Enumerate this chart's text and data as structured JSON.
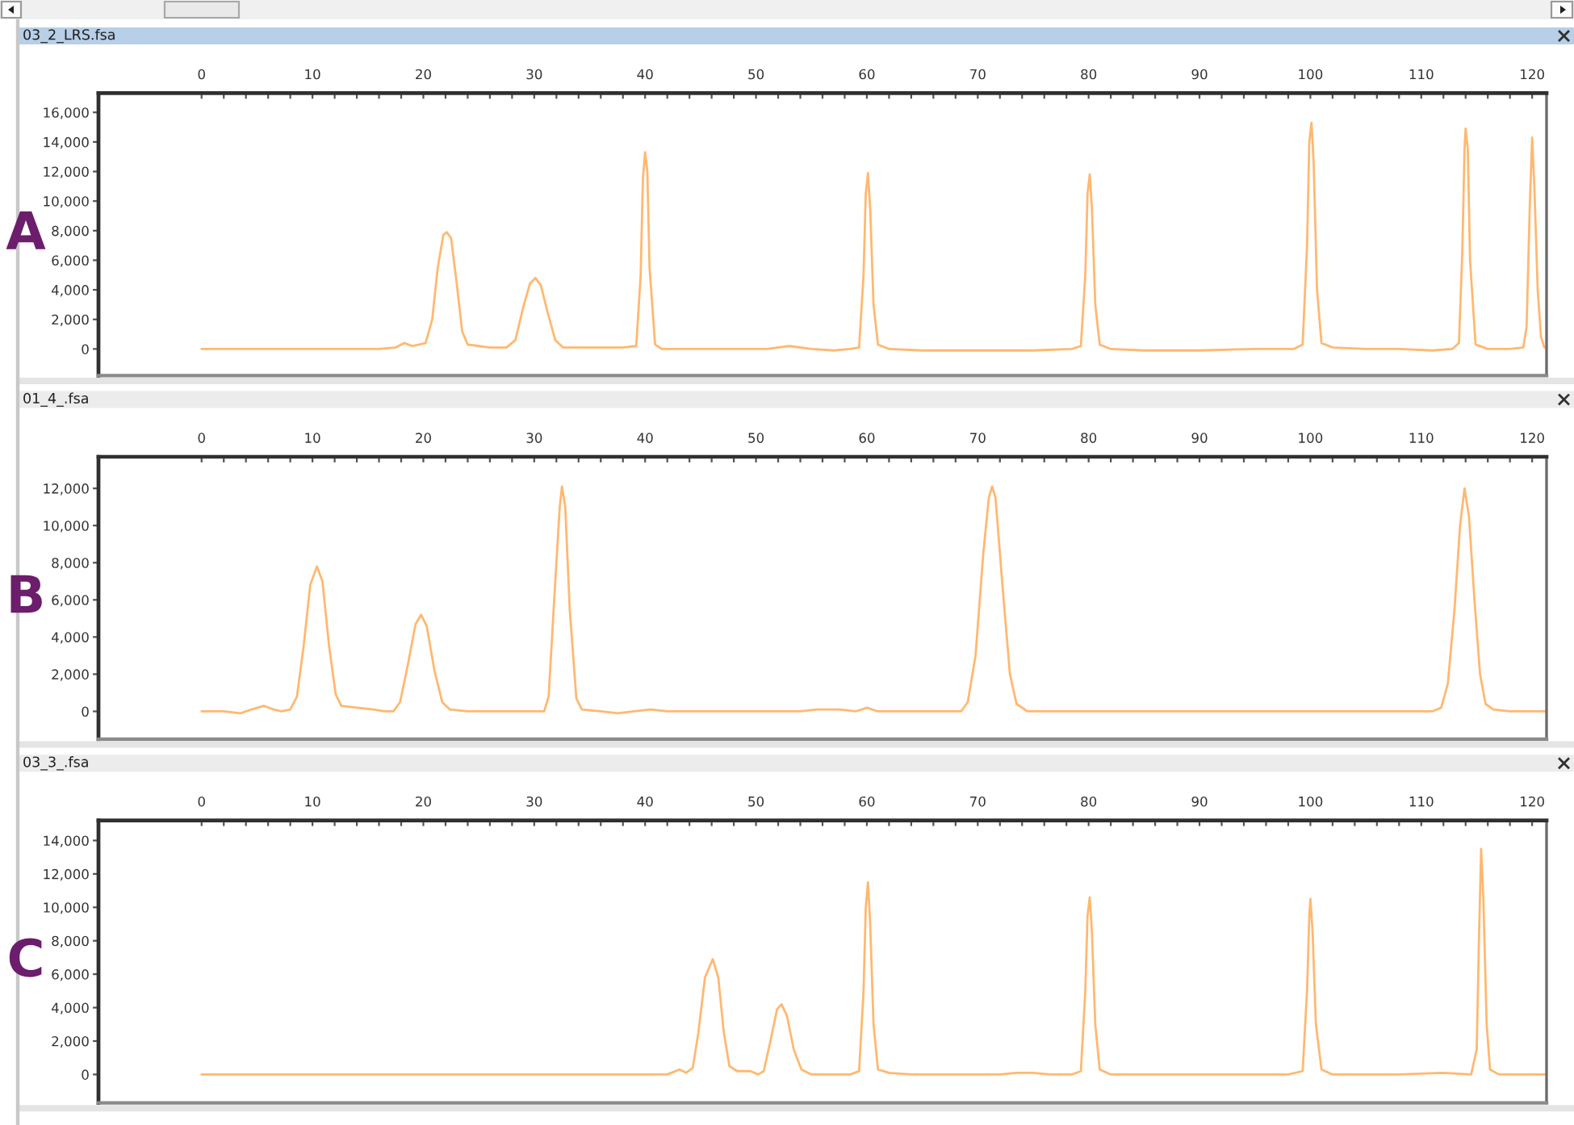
{
  "chart_data": [
    {
      "type": "line",
      "title": "03_2_LRS.fsa",
      "annotations": [
        "A"
      ],
      "x": [
        0,
        4,
        8,
        10,
        12,
        14,
        16,
        17.5,
        18.3,
        19,
        20.2,
        20.8,
        21.3,
        21.8,
        22.1,
        22.5,
        23,
        23.5,
        24,
        25,
        26,
        27.5,
        28.3,
        29,
        29.6,
        30.1,
        30.6,
        31.2,
        31.9,
        32.6,
        34,
        36,
        37,
        38,
        39.2,
        39.6,
        39.8,
        40,
        40.2,
        40.4,
        40.9,
        41.5,
        43,
        46,
        49,
        51,
        53,
        55,
        57,
        58.5,
        59.3,
        59.7,
        59.9,
        60.1,
        60.3,
        60.6,
        61,
        62,
        65,
        70,
        75,
        78.5,
        79.3,
        79.7,
        79.9,
        80.1,
        80.3,
        80.6,
        81,
        82,
        85,
        90,
        95,
        98.5,
        99.3,
        99.7,
        99.9,
        100.1,
        100.3,
        100.6,
        101,
        102,
        105,
        108,
        111,
        112.8,
        113.4,
        113.7,
        113.9,
        114,
        114.2,
        114.4,
        114.9,
        116,
        118,
        119.2,
        119.5,
        119.8,
        120,
        120.2,
        120.5,
        120.8,
        121.1
      ],
      "series": [
        {
          "color": "#ffb870",
          "values": [
            0,
            0,
            0,
            0,
            0,
            0,
            0,
            100,
            400,
            200,
            400,
            2000,
            5500,
            7700,
            7900,
            7500,
            4500,
            1200,
            300,
            200,
            100,
            100,
            600,
            2800,
            4400,
            4800,
            4300,
            2500,
            600,
            100,
            100,
            100,
            100,
            100,
            200,
            5000,
            11500,
            13300,
            12000,
            5500,
            300,
            0,
            0,
            0,
            0,
            0,
            200,
            0,
            -100,
            0,
            100,
            5000,
            10500,
            11900,
            9500,
            3000,
            300,
            0,
            -100,
            -100,
            -100,
            0,
            200,
            5000,
            10500,
            11800,
            9500,
            3000,
            300,
            0,
            -100,
            -100,
            0,
            0,
            300,
            7000,
            14000,
            15300,
            12500,
            4000,
            400,
            100,
            0,
            0,
            -100,
            0,
            400,
            6500,
            13500,
            14900,
            13500,
            6000,
            300,
            0,
            0,
            100,
            1500,
            10000,
            14300,
            11000,
            4000,
            800,
            100
          ]
        }
      ],
      "xlim": [
        -9.3,
        121.3
      ],
      "xticks": [
        0,
        {
          "value": 2,
          "label": null
        },
        {
          "value": 4,
          "label": null
        },
        {
          "value": 6,
          "label": null
        },
        {
          "value": 8,
          "label": null
        },
        10,
        {
          "value": 12,
          "label": null
        },
        {
          "value": 14,
          "label": null
        },
        {
          "value": 16,
          "label": null
        },
        {
          "value": 18,
          "label": null
        },
        20,
        {
          "value": 22,
          "label": null
        },
        {
          "value": 24,
          "label": null
        },
        {
          "value": 26,
          "label": null
        },
        {
          "value": 28,
          "label": null
        },
        30,
        {
          "value": 32,
          "label": null
        },
        {
          "value": 34,
          "label": null
        },
        {
          "value": 36,
          "label": null
        },
        {
          "value": 38,
          "label": null
        },
        40,
        {
          "value": 42,
          "label": null
        },
        {
          "value": 44,
          "label": null
        },
        {
          "value": 46,
          "label": null
        },
        {
          "value": 48,
          "label": null
        },
        50,
        {
          "value": 52,
          "label": null
        },
        {
          "value": 54,
          "label": null
        },
        {
          "value": 56,
          "label": null
        },
        {
          "value": 58,
          "label": null
        },
        60,
        {
          "value": 62,
          "label": null
        },
        {
          "value": 64,
          "label": null
        },
        {
          "value": 66,
          "label": null
        },
        {
          "value": 68,
          "label": null
        },
        70,
        {
          "value": 72,
          "label": null
        },
        {
          "value": 74,
          "label": null
        },
        {
          "value": 76,
          "label": null
        },
        {
          "value": 78,
          "label": null
        },
        80,
        {
          "value": 82,
          "label": null
        },
        {
          "value": 84,
          "label": null
        },
        {
          "value": 86,
          "label": null
        },
        {
          "value": 88,
          "label": null
        },
        90,
        {
          "value": 92,
          "label": null
        },
        {
          "value": 94,
          "label": null
        },
        {
          "value": 96,
          "label": null
        },
        {
          "value": 98,
          "label": null
        },
        100,
        {
          "value": 102,
          "label": null
        },
        {
          "value": 104,
          "label": null
        },
        {
          "value": 106,
          "label": null
        },
        {
          "value": 108,
          "label": null
        },
        110,
        {
          "value": 112,
          "label": null
        },
        {
          "value": 114,
          "label": null
        },
        {
          "value": 116,
          "label": null
        },
        {
          "value": 118,
          "label": null
        },
        120
      ],
      "ylim": [
        -1800,
        17300
      ],
      "yticks": [
        0,
        {
          "value": 2000,
          "label": "2,000"
        },
        {
          "value": 4000,
          "label": "4,000"
        },
        {
          "value": 6000,
          "label": "6,000"
        },
        {
          "value": 8000,
          "label": "8,000"
        },
        {
          "value": 10000,
          "label": "10,000"
        },
        {
          "value": 12000,
          "label": "12,000"
        },
        {
          "value": 14000,
          "label": "14,000"
        },
        {
          "value": 16000,
          "label": "16,000"
        }
      ]
    },
    {
      "type": "line",
      "title": "01_4_.fsa",
      "annotations": [
        "B"
      ],
      "x": [
        0,
        2,
        3.5,
        4.5,
        5.6,
        6.5,
        7.2,
        8,
        8.6,
        9.2,
        9.8,
        10.4,
        10.9,
        11.5,
        12.1,
        12.6,
        14,
        15.5,
        16.5,
        17.3,
        17.9,
        18.6,
        19.3,
        19.8,
        20.3,
        21,
        21.7,
        22.4,
        24,
        27,
        30,
        30.9,
        31.3,
        31.8,
        32.3,
        32.5,
        32.8,
        33.2,
        33.8,
        34.3,
        36,
        37.5,
        39,
        40.5,
        42,
        44,
        46,
        48,
        51,
        52.5,
        54,
        55.5,
        57.5,
        59,
        60,
        61,
        63,
        66,
        68.5,
        69.1,
        69.8,
        70.5,
        71,
        71.3,
        71.6,
        72.2,
        72.9,
        73.5,
        74.5,
        77,
        80,
        82,
        85,
        90,
        95,
        98,
        100,
        103,
        106,
        108,
        111,
        111.8,
        112.4,
        113,
        113.5,
        113.9,
        114.3,
        114.8,
        115.3,
        115.8,
        116.5,
        118,
        120,
        121.2
      ],
      "series": [
        {
          "color": "#ffb870",
          "values": [
            0,
            0,
            -100,
            100,
            300,
            100,
            0,
            100,
            800,
            3500,
            6800,
            7800,
            7000,
            3500,
            900,
            300,
            200,
            100,
            0,
            0,
            500,
            2500,
            4700,
            5200,
            4600,
            2200,
            500,
            100,
            0,
            0,
            0,
            0,
            800,
            6000,
            11000,
            12100,
            11000,
            5500,
            700,
            100,
            0,
            -100,
            0,
            100,
            0,
            0,
            0,
            0,
            0,
            0,
            0,
            100,
            100,
            0,
            200,
            0,
            0,
            0,
            0,
            500,
            3000,
            8500,
            11500,
            12100,
            11500,
            7000,
            2000,
            400,
            0,
            0,
            0,
            0,
            0,
            0,
            0,
            0,
            0,
            0,
            0,
            0,
            0,
            200,
            1500,
            5500,
            10000,
            12000,
            10500,
            6000,
            2000,
            400,
            100,
            0,
            0,
            0
          ]
        }
      ],
      "xlim": [
        -9.3,
        121.3
      ],
      "xticks": [
        0,
        {
          "value": 2,
          "label": null
        },
        {
          "value": 4,
          "label": null
        },
        {
          "value": 6,
          "label": null
        },
        {
          "value": 8,
          "label": null
        },
        10,
        {
          "value": 12,
          "label": null
        },
        {
          "value": 14,
          "label": null
        },
        {
          "value": 16,
          "label": null
        },
        {
          "value": 18,
          "label": null
        },
        20,
        {
          "value": 22,
          "label": null
        },
        {
          "value": 24,
          "label": null
        },
        {
          "value": 26,
          "label": null
        },
        {
          "value": 28,
          "label": null
        },
        30,
        {
          "value": 32,
          "label": null
        },
        {
          "value": 34,
          "label": null
        },
        {
          "value": 36,
          "label": null
        },
        {
          "value": 38,
          "label": null
        },
        40,
        {
          "value": 42,
          "label": null
        },
        {
          "value": 44,
          "label": null
        },
        {
          "value": 46,
          "label": null
        },
        {
          "value": 48,
          "label": null
        },
        50,
        {
          "value": 52,
          "label": null
        },
        {
          "value": 54,
          "label": null
        },
        {
          "value": 56,
          "label": null
        },
        {
          "value": 58,
          "label": null
        },
        60,
        {
          "value": 62,
          "label": null
        },
        {
          "value": 64,
          "label": null
        },
        {
          "value": 66,
          "label": null
        },
        {
          "value": 68,
          "label": null
        },
        70,
        {
          "value": 72,
          "label": null
        },
        {
          "value": 74,
          "label": null
        },
        {
          "value": 76,
          "label": null
        },
        {
          "value": 78,
          "label": null
        },
        80,
        {
          "value": 82,
          "label": null
        },
        {
          "value": 84,
          "label": null
        },
        {
          "value": 86,
          "label": null
        },
        {
          "value": 88,
          "label": null
        },
        90,
        {
          "value": 92,
          "label": null
        },
        {
          "value": 94,
          "label": null
        },
        {
          "value": 96,
          "label": null
        },
        {
          "value": 98,
          "label": null
        },
        100,
        {
          "value": 102,
          "label": null
        },
        {
          "value": 104,
          "label": null
        },
        {
          "value": 106,
          "label": null
        },
        {
          "value": 108,
          "label": null
        },
        110,
        {
          "value": 112,
          "label": null
        },
        {
          "value": 114,
          "label": null
        },
        {
          "value": 116,
          "label": null
        },
        {
          "value": 118,
          "label": null
        },
        120
      ],
      "ylim": [
        -1500,
        13700
      ],
      "yticks": [
        0,
        {
          "value": 2000,
          "label": "2,000"
        },
        {
          "value": 4000,
          "label": "4,000"
        },
        {
          "value": 6000,
          "label": "6,000"
        },
        {
          "value": 8000,
          "label": "8,000"
        },
        {
          "value": 10000,
          "label": "10,000"
        },
        {
          "value": 12000,
          "label": "12,000"
        }
      ]
    },
    {
      "type": "line",
      "title": "03_3_.fsa",
      "annotations": [
        "C"
      ],
      "x": [
        0,
        10,
        20,
        30,
        35,
        36,
        37,
        38.5,
        40,
        41,
        42,
        43.1,
        43.7,
        44.3,
        44.8,
        45.4,
        46.1,
        46.6,
        47.1,
        47.6,
        48.3,
        49.5,
        50.2,
        50.7,
        51.3,
        51.9,
        52.3,
        52.8,
        53.4,
        54.1,
        55,
        57,
        58.5,
        59.3,
        59.7,
        59.9,
        60.1,
        60.3,
        60.6,
        61,
        62,
        64,
        66,
        68,
        70,
        72,
        73.5,
        75,
        76.5,
        78.5,
        79.3,
        79.7,
        79.9,
        80.1,
        80.3,
        80.6,
        81,
        82,
        85,
        88,
        90,
        94,
        98,
        99.3,
        99.7,
        99.9,
        100,
        100.2,
        100.5,
        101,
        102,
        104,
        108,
        112,
        114.5,
        115,
        115.2,
        115.4,
        115.6,
        115.9,
        116.2,
        117,
        119,
        121.2
      ],
      "series": [
        {
          "color": "#ffb870",
          "values": [
            0,
            0,
            0,
            0,
            0,
            0,
            0,
            0,
            0,
            0,
            0,
            300,
            100,
            400,
            2500,
            5800,
            6900,
            5800,
            2500,
            500,
            200,
            200,
            0,
            200,
            2000,
            3900,
            4200,
            3500,
            1500,
            300,
            0,
            0,
            0,
            200,
            5000,
            10000,
            11500,
            9000,
            3000,
            300,
            100,
            0,
            0,
            0,
            0,
            0,
            100,
            100,
            0,
            0,
            200,
            5000,
            9500,
            10600,
            8500,
            3000,
            300,
            0,
            0,
            0,
            0,
            0,
            0,
            200,
            5000,
            9500,
            10500,
            8500,
            3000,
            300,
            0,
            0,
            0,
            100,
            0,
            1500,
            8000,
            13500,
            10500,
            3000,
            300,
            0,
            0,
            0
          ]
        }
      ],
      "xlim": [
        -9.3,
        121.3
      ],
      "xticks": [
        0,
        {
          "value": 2,
          "label": null
        },
        {
          "value": 4,
          "label": null
        },
        {
          "value": 6,
          "label": null
        },
        {
          "value": 8,
          "label": null
        },
        10,
        {
          "value": 12,
          "label": null
        },
        {
          "value": 14,
          "label": null
        },
        {
          "value": 16,
          "label": null
        },
        {
          "value": 18,
          "label": null
        },
        20,
        {
          "value": 22,
          "label": null
        },
        {
          "value": 24,
          "label": null
        },
        {
          "value": 26,
          "label": null
        },
        {
          "value": 28,
          "label": null
        },
        30,
        {
          "value": 32,
          "label": null
        },
        {
          "value": 34,
          "label": null
        },
        {
          "value": 36,
          "label": null
        },
        {
          "value": 38,
          "label": null
        },
        40,
        {
          "value": 42,
          "label": null
        },
        {
          "value": 44,
          "label": null
        },
        {
          "value": 46,
          "label": null
        },
        {
          "value": 48,
          "label": null
        },
        50,
        {
          "value": 52,
          "label": null
        },
        {
          "value": 54,
          "label": null
        },
        {
          "value": 56,
          "label": null
        },
        {
          "value": 58,
          "label": null
        },
        60,
        {
          "value": 62,
          "label": null
        },
        {
          "value": 64,
          "label": null
        },
        {
          "value": 66,
          "label": null
        },
        {
          "value": 68,
          "label": null
        },
        70,
        {
          "value": 72,
          "label": null
        },
        {
          "value": 74,
          "label": null
        },
        {
          "value": 76,
          "label": null
        },
        {
          "value": 78,
          "label": null
        },
        80,
        {
          "value": 82,
          "label": null
        },
        {
          "value": 84,
          "label": null
        },
        {
          "value": 86,
          "label": null
        },
        {
          "value": 88,
          "label": null
        },
        90,
        {
          "value": 92,
          "label": null
        },
        {
          "value": 94,
          "label": null
        },
        {
          "value": 96,
          "label": null
        },
        {
          "value": 98,
          "label": null
        },
        100,
        {
          "value": 102,
          "label": null
        },
        {
          "value": 104,
          "label": null
        },
        {
          "value": 106,
          "label": null
        },
        {
          "value": 108,
          "label": null
        },
        110,
        {
          "value": 112,
          "label": null
        },
        {
          "value": 114,
          "label": null
        },
        {
          "value": 116,
          "label": null
        },
        {
          "value": 118,
          "label": null
        },
        120
      ],
      "ylim": [
        -1700,
        15200
      ],
      "yticks": [
        0,
        {
          "value": 2000,
          "label": "2,000"
        },
        {
          "value": 4000,
          "label": "4,000"
        },
        {
          "value": 6000,
          "label": "6,000"
        },
        {
          "value": 8000,
          "label": "8,000"
        },
        {
          "value": 10000,
          "label": "10,000"
        },
        {
          "value": 12000,
          "label": "12,000"
        },
        {
          "value": 14000,
          "label": "14,000"
        }
      ]
    }
  ]
}
